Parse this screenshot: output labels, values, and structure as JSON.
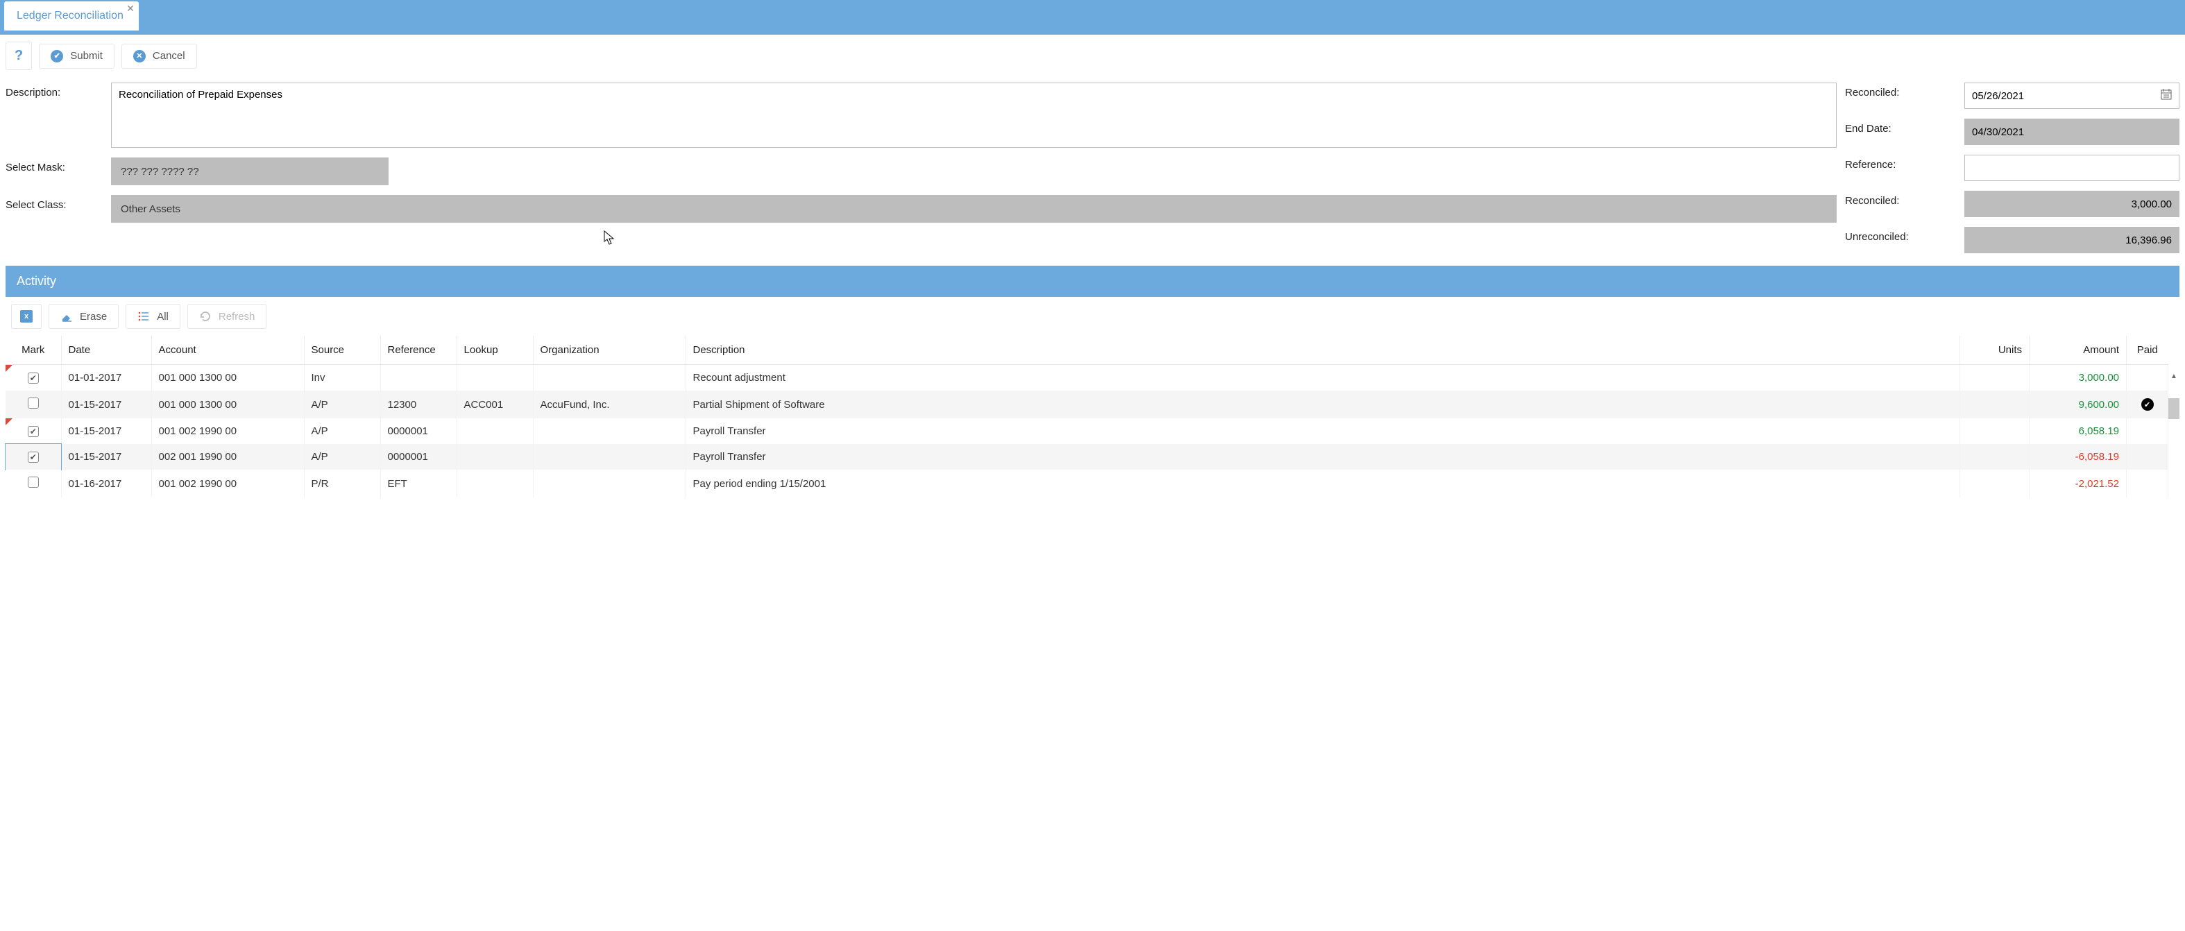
{
  "tab": {
    "title": "Ledger Reconciliation"
  },
  "toolbar": {
    "help_label": "?",
    "submit_label": "Submit",
    "cancel_label": "Cancel"
  },
  "form": {
    "description_label": "Description:",
    "description_value": "Reconciliation of Prepaid Expenses",
    "select_mask_label": "Select Mask:",
    "select_mask_value": "??? ??? ???? ??",
    "select_class_label": "Select Class:",
    "select_class_value": "Other Assets",
    "reconciled_label": "Reconciled:",
    "reconciled_value": "05/26/2021",
    "end_date_label": "End Date:",
    "end_date_value": "04/30/2021",
    "reference_label": "Reference:",
    "reference_value": "",
    "reconciled_total_label": "Reconciled:",
    "reconciled_total_value": "3,000.00",
    "unreconciled_label": "Unreconciled:",
    "unreconciled_value": "16,396.96"
  },
  "section": {
    "title": "Activity"
  },
  "sub_toolbar": {
    "erase_label": "Erase",
    "all_label": "All",
    "refresh_label": "Refresh"
  },
  "columns": {
    "mark": "Mark",
    "date": "Date",
    "account": "Account",
    "source": "Source",
    "reference": "Reference",
    "lookup": "Lookup",
    "organization": "Organization",
    "description": "Description",
    "units": "Units",
    "amount": "Amount",
    "paid": "Paid"
  },
  "colors": {
    "amount_positive": "#1a8f3a",
    "amount_negative": "#d43d2a",
    "header_blue": "#6ca9dc",
    "readonly_gray": "#bdbdbd"
  },
  "rows": [
    {
      "checked": true,
      "flagged": true,
      "selected": false,
      "date": "01-01-2017",
      "account": "001 000 1300 00",
      "source": "Inv",
      "reference": "",
      "lookup": "",
      "organization": "",
      "description": "Recount adjustment",
      "units": "",
      "amount": "3,000.00",
      "amount_sign": "positive",
      "paid": false,
      "alt": false
    },
    {
      "checked": false,
      "flagged": false,
      "selected": false,
      "date": "01-15-2017",
      "account": "001 000 1300 00",
      "source": "A/P",
      "reference": "12300",
      "lookup": "ACC001",
      "organization": "AccuFund, Inc.",
      "description": "Partial Shipment of Software",
      "units": "",
      "amount": "9,600.00",
      "amount_sign": "positive",
      "paid": true,
      "alt": true
    },
    {
      "checked": true,
      "flagged": true,
      "selected": false,
      "date": "01-15-2017",
      "account": "001 002 1990 00",
      "source": "A/P",
      "reference": "0000001",
      "lookup": "",
      "organization": "",
      "description": "Payroll Transfer",
      "units": "",
      "amount": "6,058.19",
      "amount_sign": "positive",
      "paid": false,
      "alt": false
    },
    {
      "checked": true,
      "flagged": false,
      "selected": true,
      "date": "01-15-2017",
      "account": "002 001 1990 00",
      "source": "A/P",
      "reference": "0000001",
      "lookup": "",
      "organization": "",
      "description": "Payroll Transfer",
      "units": "",
      "amount": "-6,058.19",
      "amount_sign": "negative",
      "paid": false,
      "alt": true
    },
    {
      "checked": false,
      "flagged": false,
      "selected": false,
      "date": "01-16-2017",
      "account": "001 002 1990 00",
      "source": "P/R",
      "reference": "EFT",
      "lookup": "",
      "organization": "",
      "description": "Pay period ending 1/15/2001",
      "units": "",
      "amount": "-2,021.52",
      "amount_sign": "negative",
      "paid": false,
      "alt": false
    }
  ]
}
